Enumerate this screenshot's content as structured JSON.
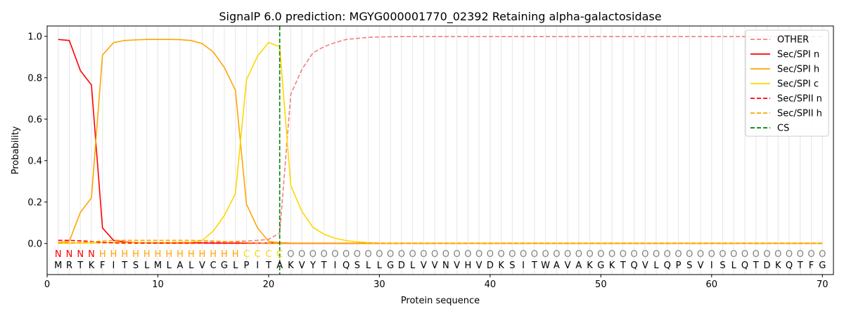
{
  "chart_data": {
    "type": "line",
    "title": "SignalP 6.0 prediction: MGYG000001770_02392 Retaining alpha-galactosidase",
    "xlabel": "Protein sequence",
    "ylabel": "Probability",
    "xlim": [
      0,
      71
    ],
    "ylim": [
      -0.15,
      1.05
    ],
    "xticks": [
      0,
      10,
      20,
      30,
      40,
      50,
      60,
      70
    ],
    "yticks": [
      0.0,
      0.2,
      0.4,
      0.6,
      0.8,
      1.0
    ],
    "xtick_labels": [
      "0",
      "10",
      "20",
      "30",
      "40",
      "50",
      "60",
      "70"
    ],
    "ytick_labels": [
      "0.0",
      "0.2",
      "0.4",
      "0.6",
      "0.8",
      "1.0"
    ],
    "grid": "vertical at each residue",
    "legend_position": "top-right",
    "sequence": "MRTKFITSLMLALVCGLPITAKVYTIQSLLGDLVVNVHVDKSITWAVAKGKTQVLQPSVISLQTDKQTFG",
    "labels": "NNNNHHHHHHHHHHHHHCCCCOOOOOOOOOOOOOOOOOOOOOOOOOOOOOOOOOOOOOOOOOOOOOOOOO",
    "label_colors": {
      "N": "#ff0000",
      "H": "#ffa500",
      "C": "#ffd700",
      "O": "#808080"
    },
    "cs_position": 21,
    "series": [
      {
        "name": "OTHER",
        "color": "#f08080",
        "dash": "dashed",
        "values": [
          0.002,
          0.002,
          0.002,
          0.002,
          0.003,
          0.004,
          0.004,
          0.004,
          0.004,
          0.004,
          0.004,
          0.004,
          0.004,
          0.005,
          0.006,
          0.008,
          0.01,
          0.012,
          0.015,
          0.02,
          0.05,
          0.72,
          0.84,
          0.92,
          0.95,
          0.97,
          0.985,
          0.99,
          0.995,
          0.997,
          0.998,
          0.999,
          0.999,
          0.999,
          0.999,
          0.999,
          0.999,
          0.999,
          0.999,
          0.999,
          0.999,
          0.999,
          0.999,
          0.999,
          0.999,
          0.999,
          0.999,
          0.999,
          0.999,
          0.999,
          0.999,
          0.999,
          0.999,
          0.999,
          0.999,
          0.999,
          0.999,
          0.999,
          0.999,
          0.999,
          0.999,
          0.999,
          0.999,
          0.999,
          0.999,
          0.999,
          0.999,
          0.999,
          0.999,
          0.999
        ]
      },
      {
        "name": "Sec/SPI n",
        "color": "#ff0000",
        "dash": "solid",
        "values": [
          0.985,
          0.98,
          0.835,
          0.765,
          0.075,
          0.015,
          0.008,
          0.005,
          0.004,
          0.003,
          0.003,
          0.003,
          0.003,
          0.003,
          0.002,
          0.002,
          0.002,
          0.002,
          0.002,
          0.002,
          0.002,
          0.001,
          0.001,
          0.001,
          0.001,
          0.001,
          0.001,
          0.001,
          0.001,
          0.001,
          0.001,
          0.001,
          0.001,
          0.001,
          0.001,
          0.001,
          0.001,
          0.001,
          0.001,
          0.001,
          0.001,
          0.001,
          0.001,
          0.001,
          0.001,
          0.001,
          0.001,
          0.001,
          0.001,
          0.001,
          0.001,
          0.001,
          0.001,
          0.001,
          0.001,
          0.001,
          0.001,
          0.001,
          0.001,
          0.001,
          0.001,
          0.001,
          0.001,
          0.001,
          0.001,
          0.001,
          0.001,
          0.001,
          0.001,
          0.001
        ]
      },
      {
        "name": "Sec/SPI h",
        "color": "#ffa500",
        "dash": "solid",
        "values": [
          0.005,
          0.01,
          0.15,
          0.22,
          0.91,
          0.97,
          0.98,
          0.983,
          0.985,
          0.985,
          0.985,
          0.984,
          0.98,
          0.965,
          0.925,
          0.85,
          0.74,
          0.19,
          0.075,
          0.01,
          0.004,
          0.002,
          0.001,
          0.001,
          0.001,
          0.001,
          0.001,
          0.001,
          0.001,
          0.001,
          0.001,
          0.001,
          0.001,
          0.001,
          0.001,
          0.001,
          0.001,
          0.001,
          0.001,
          0.001,
          0.001,
          0.001,
          0.001,
          0.001,
          0.001,
          0.001,
          0.001,
          0.001,
          0.001,
          0.001,
          0.001,
          0.001,
          0.001,
          0.001,
          0.001,
          0.001,
          0.001,
          0.001,
          0.001,
          0.001,
          0.001,
          0.001,
          0.001,
          0.001,
          0.001,
          0.001,
          0.001,
          0.001,
          0.001,
          0.001
        ]
      },
      {
        "name": "Sec/SPI c",
        "color": "#ffd700",
        "dash": "solid",
        "values": [
          0.001,
          0.001,
          0.002,
          0.003,
          0.005,
          0.005,
          0.005,
          0.005,
          0.005,
          0.005,
          0.005,
          0.006,
          0.006,
          0.015,
          0.06,
          0.135,
          0.24,
          0.79,
          0.905,
          0.97,
          0.95,
          0.28,
          0.155,
          0.078,
          0.045,
          0.025,
          0.014,
          0.008,
          0.004,
          0.002,
          0.001,
          0.001,
          0.001,
          0.001,
          0.001,
          0.001,
          0.001,
          0.001,
          0.001,
          0.001,
          0.001,
          0.001,
          0.001,
          0.001,
          0.001,
          0.001,
          0.001,
          0.001,
          0.001,
          0.001,
          0.001,
          0.001,
          0.001,
          0.001,
          0.001,
          0.001,
          0.001,
          0.001,
          0.001,
          0.001,
          0.001,
          0.001,
          0.001,
          0.001,
          0.001,
          0.001,
          0.001,
          0.001,
          0.001,
          0.001
        ]
      },
      {
        "name": "Sec/SPII n",
        "color": "#ff0000",
        "dash": "dashed",
        "values": [
          0.015,
          0.015,
          0.013,
          0.01,
          0.005,
          0.003,
          0.002,
          0.002,
          0.002,
          0.002,
          0.002,
          0.002,
          0.002,
          0.002,
          0.001,
          0.001,
          0.001,
          0.001,
          0.001,
          0.001,
          0.001,
          0.001,
          0.001,
          0.001,
          0.001,
          0.001,
          0.001,
          0.001,
          0.001,
          0.001,
          0.001,
          0.001,
          0.001,
          0.001,
          0.001,
          0.001,
          0.001,
          0.001,
          0.001,
          0.001,
          0.001,
          0.001,
          0.001,
          0.001,
          0.001,
          0.001,
          0.001,
          0.001,
          0.001,
          0.001,
          0.001,
          0.001,
          0.001,
          0.001,
          0.001,
          0.001,
          0.001,
          0.001,
          0.001,
          0.001,
          0.001,
          0.001,
          0.001,
          0.001,
          0.001,
          0.001,
          0.001,
          0.001,
          0.001,
          0.001
        ]
      },
      {
        "name": "Sec/SPII h",
        "color": "#ffa500",
        "dash": "dashed",
        "values": [
          0.002,
          0.003,
          0.005,
          0.008,
          0.012,
          0.015,
          0.015,
          0.015,
          0.015,
          0.015,
          0.015,
          0.015,
          0.015,
          0.014,
          0.012,
          0.01,
          0.008,
          0.004,
          0.002,
          0.001,
          0.001,
          0.001,
          0.001,
          0.001,
          0.001,
          0.001,
          0.001,
          0.001,
          0.001,
          0.001,
          0.001,
          0.001,
          0.001,
          0.001,
          0.001,
          0.001,
          0.001,
          0.001,
          0.001,
          0.001,
          0.001,
          0.001,
          0.001,
          0.001,
          0.001,
          0.001,
          0.001,
          0.001,
          0.001,
          0.001,
          0.001,
          0.001,
          0.001,
          0.001,
          0.001,
          0.001,
          0.001,
          0.001,
          0.001,
          0.001,
          0.001,
          0.001,
          0.001,
          0.001,
          0.001,
          0.001,
          0.001,
          0.001,
          0.001,
          0.001
        ]
      },
      {
        "name": "CS",
        "color": "#008000",
        "dash": "dashed",
        "x": 21
      }
    ]
  }
}
